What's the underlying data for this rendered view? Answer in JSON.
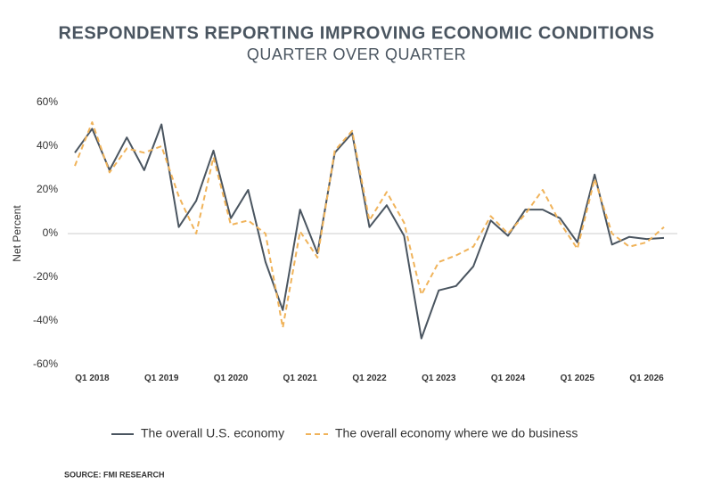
{
  "chart_data": {
    "type": "line",
    "title": "RESPONDENTS REPORTING IMPROVING ECONOMIC CONDITIONS",
    "subtitle": "QUARTER OVER QUARTER",
    "y_label": "Net Percent",
    "source": "SOURCE: FMI RESEARCH",
    "categories": [
      null,
      "Q1 2018",
      null,
      null,
      null,
      "Q1 2019",
      null,
      null,
      null,
      "Q1 2020",
      null,
      null,
      null,
      "Q1 2021",
      null,
      null,
      null,
      "Q1 2022",
      null,
      null,
      null,
      "Q1 2023",
      null,
      null,
      null,
      "Q1 2024",
      null,
      null,
      null,
      "Q1 2025",
      null,
      null,
      null,
      "Q1 2026",
      null
    ],
    "series": [
      {
        "name": "The overall U.S. economy",
        "color": "#4a5560",
        "dashed": false,
        "values": [
          37,
          48,
          29,
          44,
          29,
          50,
          3,
          15,
          38,
          7,
          20,
          -13,
          -35,
          11,
          -9,
          37,
          46,
          3,
          13,
          -1,
          -48,
          -26,
          -24,
          -15,
          6,
          -1,
          11,
          11,
          7,
          -4,
          27,
          -5,
          -1.5,
          -2.5,
          -2
        ]
      },
      {
        "name": "The overall economy where we do business",
        "color": "#f0b35a",
        "dashed": true,
        "values": [
          31,
          51,
          28,
          39,
          37,
          40,
          17,
          0,
          35,
          4,
          6,
          0,
          -43,
          1,
          -11,
          38,
          47,
          6,
          19,
          5,
          -28,
          -13,
          -10,
          -6,
          8,
          0,
          9,
          20,
          5,
          -7,
          25,
          0,
          -6,
          -4,
          3
        ]
      }
    ],
    "ylim": [
      -60,
      60
    ],
    "yticks": [
      {
        "value": -60,
        "label": "-60%"
      },
      {
        "value": -40,
        "label": "-40%"
      },
      {
        "value": -20,
        "label": "-20%"
      },
      {
        "value": 0,
        "label": "0%"
      },
      {
        "value": 20,
        "label": "20%"
      },
      {
        "value": 40,
        "label": "40%"
      },
      {
        "value": 60,
        "label": "60%"
      }
    ],
    "legend": "bottom"
  }
}
